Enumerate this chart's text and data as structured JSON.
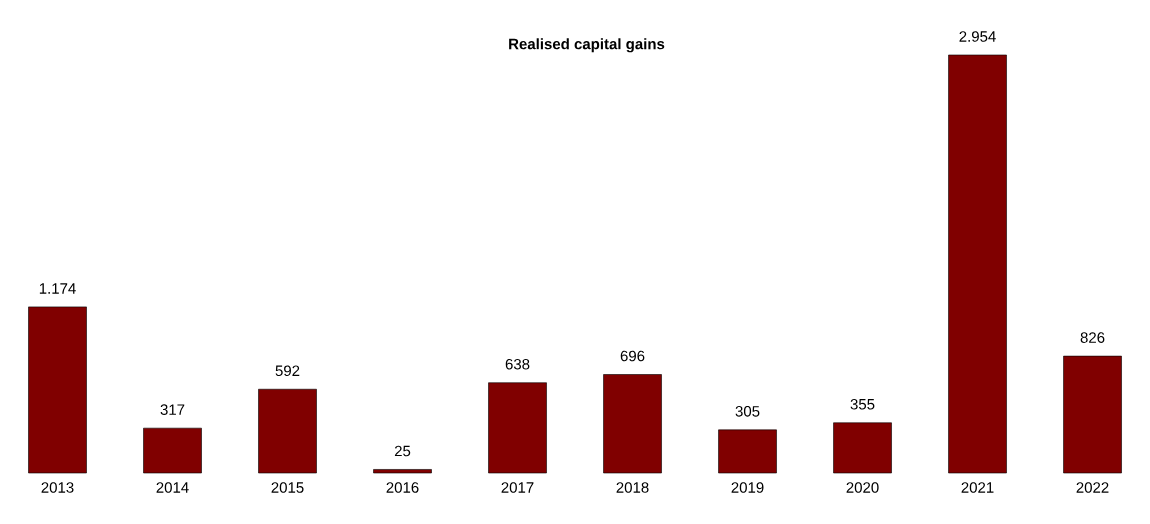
{
  "chart_data": {
    "type": "bar",
    "title": "Realised capital gains",
    "categories": [
      "2013",
      "2014",
      "2015",
      "2016",
      "2017",
      "2018",
      "2019",
      "2020",
      "2021",
      "2022"
    ],
    "values": [
      1174,
      317,
      592,
      25,
      638,
      696,
      305,
      355,
      2954,
      826
    ],
    "value_labels": [
      "1.174",
      "317",
      "592",
      "25",
      "638",
      "696",
      "305",
      "355",
      "2.954",
      "826"
    ],
    "color": "#800000"
  }
}
